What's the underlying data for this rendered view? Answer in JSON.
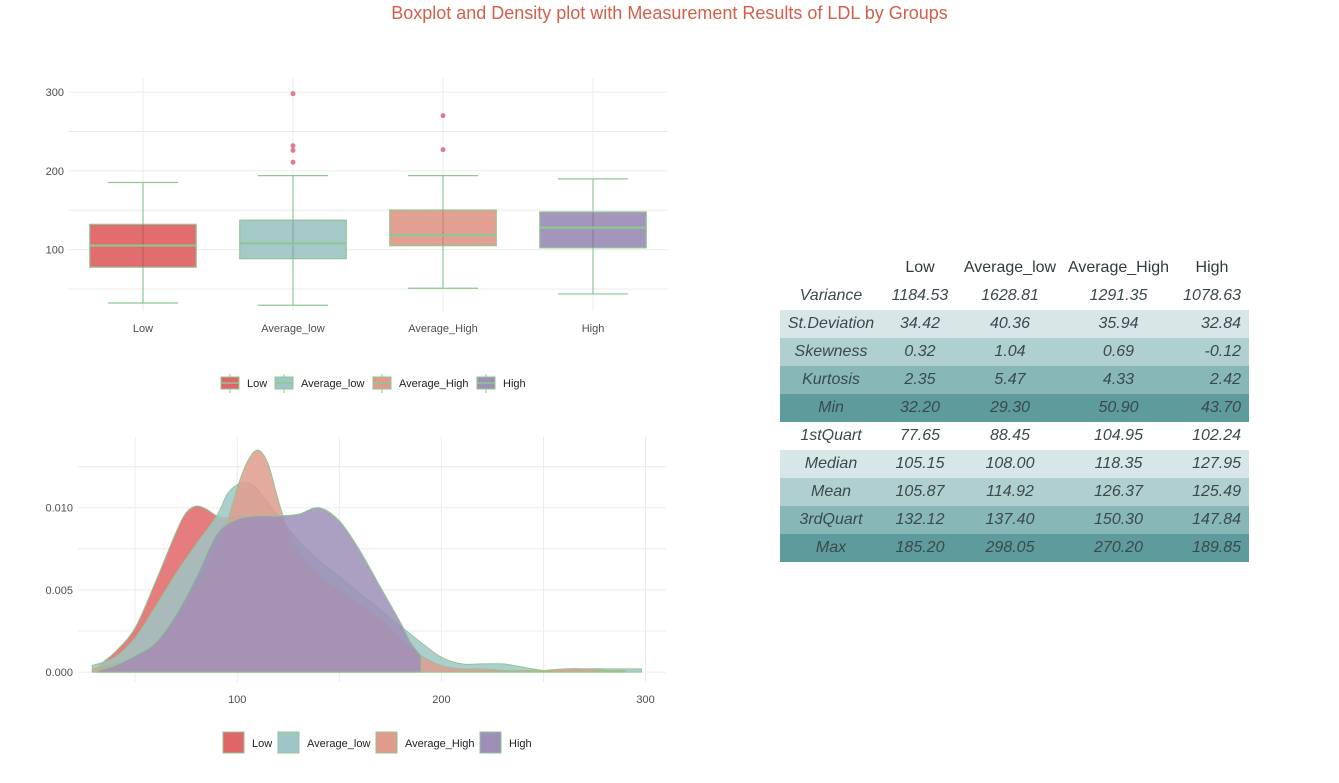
{
  "title": "Boxplot and Density plot with Measurement Results of LDL by Groups",
  "colors": {
    "title": "#d35f49",
    "outline": "#8fc693",
    "outlier": "#e0627a",
    "groups": {
      "Low": "#e06566",
      "Average_low": "#a0c5c6",
      "Average_High": "#e09b8d",
      "High": "#9e8fb7"
    },
    "table_rows": [
      "#ffffff",
      "#d7e7e8",
      "#b0cfd0",
      "#88b7b8",
      "#5e9b9d"
    ]
  },
  "chart_data": [
    {
      "type": "boxplot",
      "title": "",
      "xlabel": "",
      "ylabel": "",
      "ylim": [
        22,
        318
      ],
      "yticks": [
        100,
        200,
        300
      ],
      "grid": true,
      "categories": [
        "Low",
        "Average_low",
        "Average_High",
        "High"
      ],
      "boxes": [
        {
          "group": "Low",
          "whisker_low": 32.2,
          "q1": 77.65,
          "median": 105.15,
          "q3": 132.12,
          "whisker_high": 185.2,
          "outliers": []
        },
        {
          "group": "Average_low",
          "whisker_low": 29.3,
          "q1": 88.45,
          "median": 108.0,
          "q3": 137.4,
          "whisker_high": 194,
          "outliers": [
            298.05,
            232,
            226,
            211
          ]
        },
        {
          "group": "Average_High",
          "whisker_low": 50.9,
          "q1": 104.95,
          "median": 118.35,
          "q3": 150.3,
          "whisker_high": 194,
          "outliers": [
            270.2,
            227
          ]
        },
        {
          "group": "High",
          "whisker_low": 43.7,
          "q1": 102.24,
          "median": 127.95,
          "q3": 147.84,
          "whisker_high": 189.85,
          "outliers": []
        }
      ],
      "legend": {
        "position": "bottom",
        "entries": [
          "Low",
          "Average_low",
          "Average_High",
          "High"
        ]
      }
    },
    {
      "type": "area",
      "title": "",
      "xlabel": "",
      "ylabel": "",
      "xlim": [
        22,
        310
      ],
      "ylim": [
        -0.0006,
        0.0143
      ],
      "xticks": [
        100,
        200,
        300
      ],
      "yticks": [
        0.0,
        0.005,
        0.01
      ],
      "ytick_labels": [
        "0.000",
        "0.005",
        "0.010"
      ],
      "grid": true,
      "series": [
        {
          "name": "Low",
          "x": [
            32,
            40,
            50,
            60,
            70,
            75,
            80,
            85,
            90,
            95,
            100,
            110,
            120,
            130,
            140,
            150,
            160,
            170,
            180,
            185
          ],
          "y": [
            0.0004,
            0.0012,
            0.0027,
            0.0055,
            0.0085,
            0.0097,
            0.0101,
            0.0099,
            0.0095,
            0.0094,
            0.0095,
            0.0094,
            0.0088,
            0.0074,
            0.006,
            0.0047,
            0.0035,
            0.0022,
            0.0011,
            0.0006
          ]
        },
        {
          "name": "Average_low",
          "x": [
            29,
            40,
            50,
            60,
            70,
            80,
            90,
            95,
            100,
            105,
            110,
            120,
            130,
            140,
            150,
            160,
            170,
            180,
            190,
            200,
            210,
            220,
            230,
            240,
            250,
            260,
            270,
            280,
            290,
            298
          ],
          "y": [
            0.0004,
            0.0009,
            0.0021,
            0.004,
            0.006,
            0.0078,
            0.0095,
            0.0108,
            0.0114,
            0.0115,
            0.0111,
            0.0095,
            0.008,
            0.0068,
            0.0058,
            0.0048,
            0.0038,
            0.0028,
            0.0018,
            0.0009,
            0.0005,
            0.0005,
            0.0005,
            0.0003,
            0.0001,
            0.0001,
            0.0002,
            0.0002,
            0.0002,
            0.0002
          ]
        },
        {
          "name": "Average_High",
          "x": [
            29,
            40,
            50,
            60,
            70,
            80,
            90,
            95,
            100,
            105,
            110,
            115,
            120,
            125,
            130,
            140,
            150,
            160,
            170,
            180,
            190,
            200,
            210,
            220,
            230,
            240,
            250,
            260,
            270,
            280,
            290
          ],
          "y": [
            0.0002,
            0.0005,
            0.0009,
            0.0017,
            0.0032,
            0.0052,
            0.0075,
            0.0091,
            0.0112,
            0.0128,
            0.0135,
            0.0127,
            0.0105,
            0.0085,
            0.0072,
            0.0058,
            0.005,
            0.0041,
            0.0032,
            0.002,
            0.001,
            0.0004,
            0.0002,
            0.0002,
            0.0001,
            0.0001,
            0.0001,
            0.0002,
            0.0002,
            0.0001,
            0.0001
          ]
        },
        {
          "name": "High",
          "x": [
            32,
            40,
            50,
            60,
            70,
            80,
            90,
            100,
            110,
            120,
            130,
            140,
            150,
            160,
            170,
            180,
            185,
            190
          ],
          "y": [
            0.0001,
            0.0004,
            0.001,
            0.0018,
            0.0035,
            0.0058,
            0.0084,
            0.0093,
            0.0095,
            0.0095,
            0.0096,
            0.01,
            0.0092,
            0.0074,
            0.0052,
            0.003,
            0.0018,
            0.001
          ]
        }
      ],
      "legend": {
        "position": "bottom",
        "entries": [
          "Low",
          "Average_low",
          "Average_High",
          "High"
        ]
      }
    },
    {
      "type": "table",
      "columns": [
        "",
        "Low",
        "Average_low",
        "Average_High",
        "High"
      ],
      "rows": [
        {
          "label": "Variance",
          "values": [
            "1184.53",
            "1628.81",
            "1291.35",
            "1078.63"
          ]
        },
        {
          "label": "St.Deviation",
          "values": [
            "34.42",
            "40.36",
            "35.94",
            "32.84"
          ]
        },
        {
          "label": "Skewness",
          "values": [
            "0.32",
            "1.04",
            "0.69",
            "-0.12"
          ]
        },
        {
          "label": "Kurtosis",
          "values": [
            "2.35",
            "5.47",
            "4.33",
            "2.42"
          ]
        },
        {
          "label": "Min",
          "values": [
            "32.20",
            "29.30",
            "50.90",
            "43.70"
          ]
        },
        {
          "label": "1stQuart",
          "values": [
            "77.65",
            "88.45",
            "104.95",
            "102.24"
          ]
        },
        {
          "label": "Median",
          "values": [
            "105.15",
            "108.00",
            "118.35",
            "127.95"
          ]
        },
        {
          "label": "Mean",
          "values": [
            "105.87",
            "114.92",
            "126.37",
            "125.49"
          ]
        },
        {
          "label": "3rdQuart",
          "values": [
            "132.12",
            "137.40",
            "150.30",
            "147.84"
          ]
        },
        {
          "label": "Max",
          "values": [
            "185.20",
            "298.05",
            "270.20",
            "189.85"
          ]
        }
      ]
    }
  ]
}
